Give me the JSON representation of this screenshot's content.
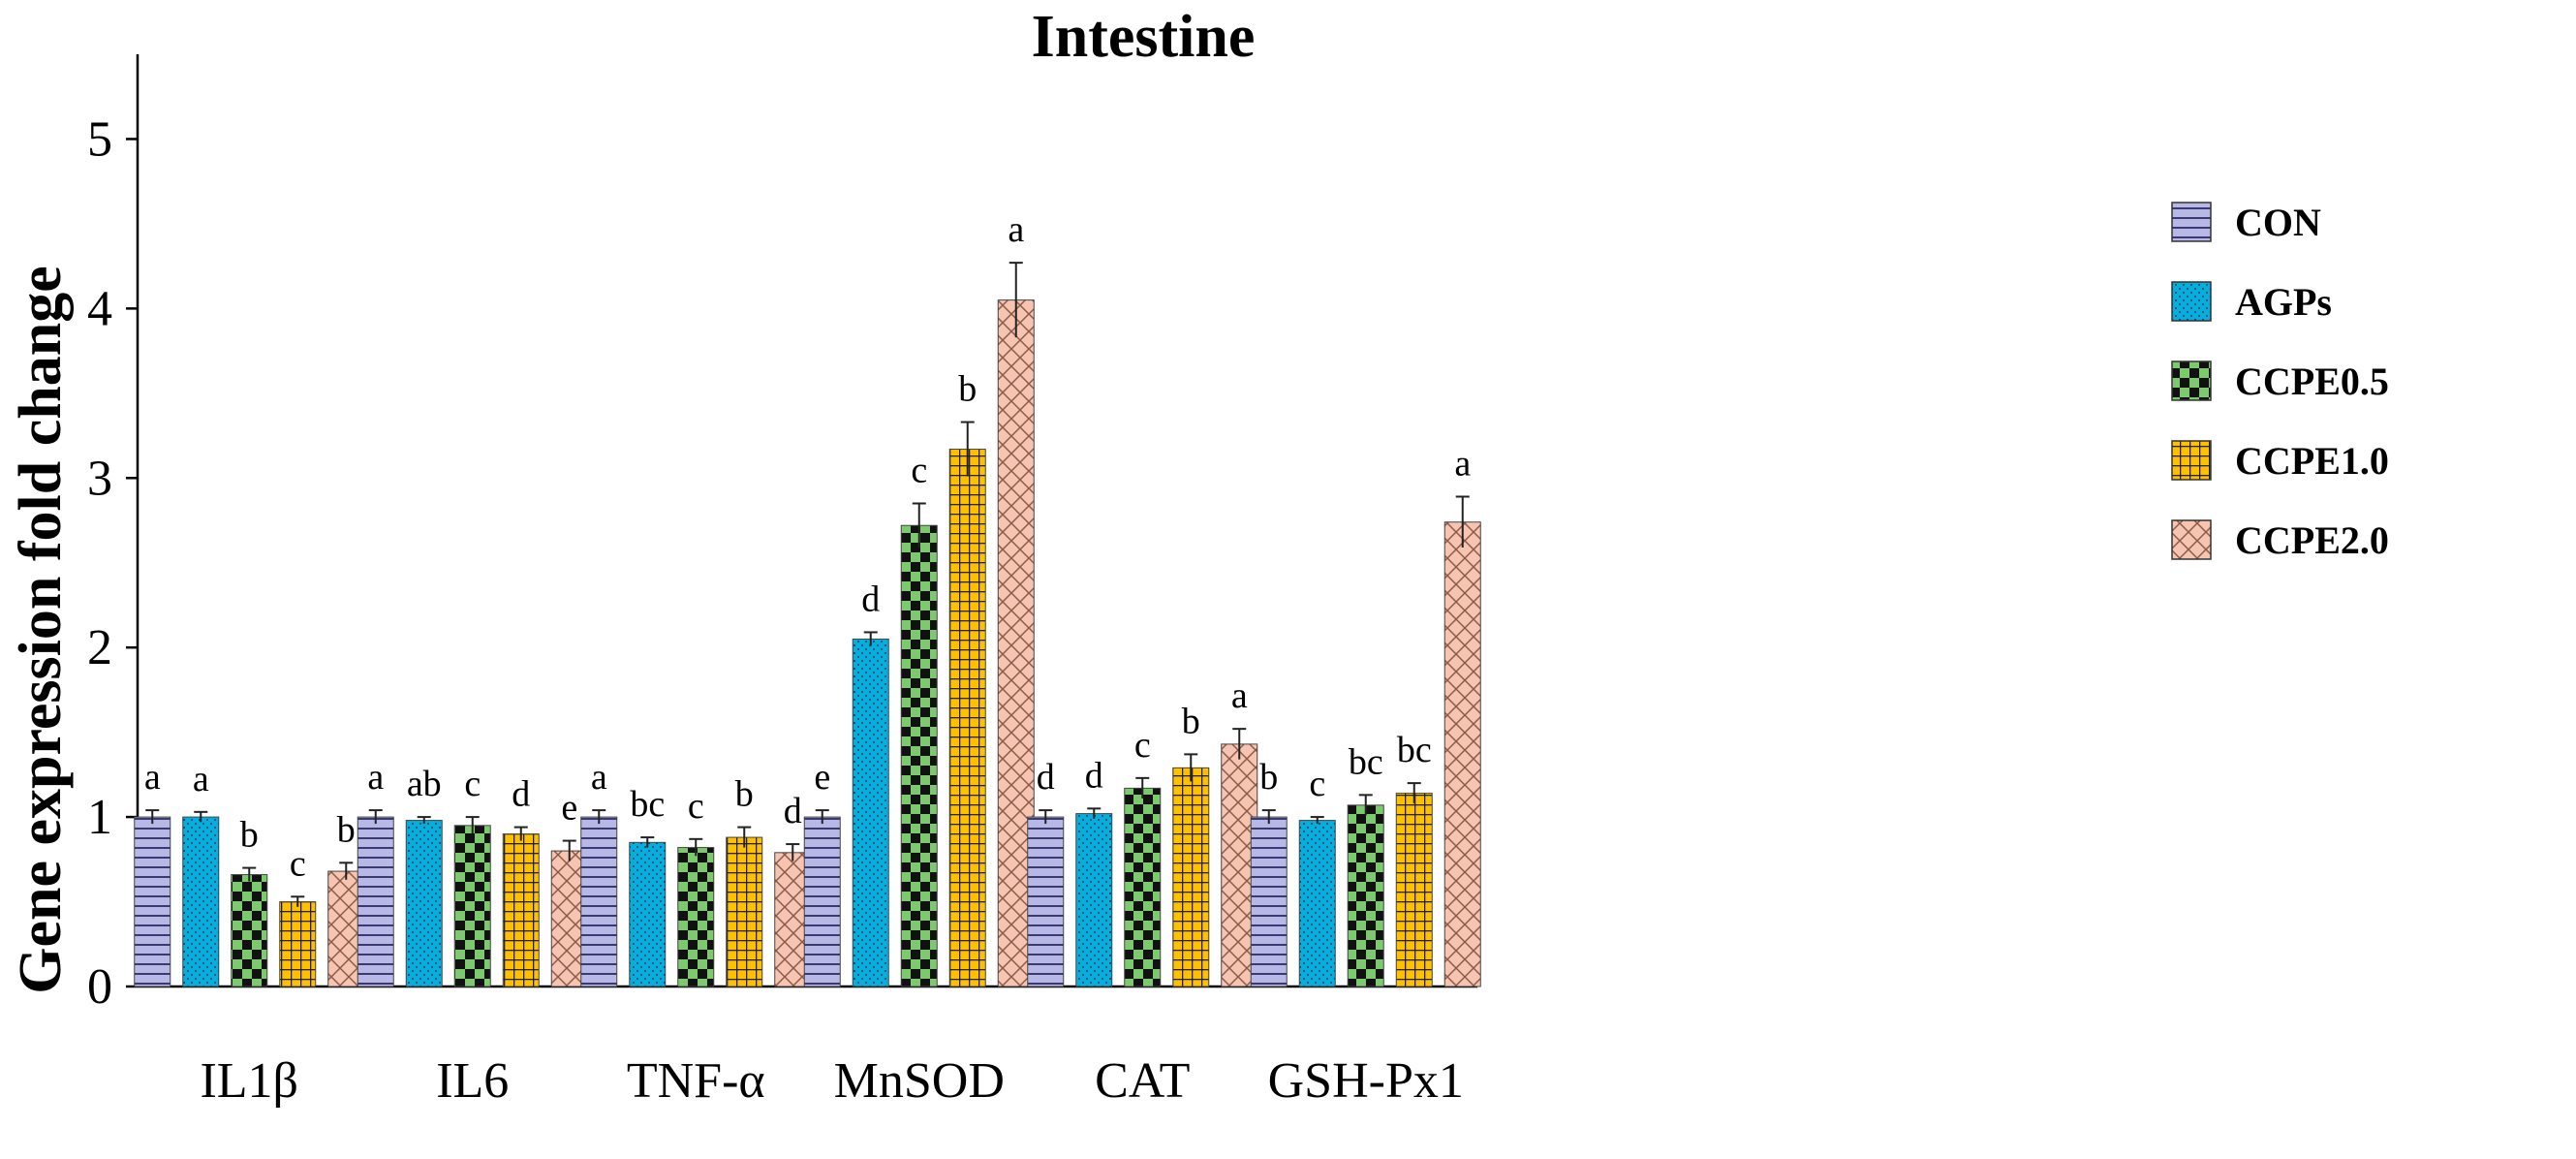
{
  "chart_data": {
    "type": "bar",
    "title": "Intestine",
    "xlabel": "",
    "ylabel": "Gene expression fold change",
    "ylim": [
      0,
      5.5
    ],
    "yticks": [
      "0",
      "1",
      "2",
      "3",
      "4",
      "5"
    ],
    "grid": false,
    "legend_position": "right",
    "categories": [
      "IL1β",
      "IL6",
      "TNF-α",
      "MnSOD",
      "CAT",
      "GSH-Px1"
    ],
    "series": [
      {
        "name": "CON",
        "color": "#b8b8e6",
        "pattern": "horizontal-lines",
        "values": [
          1.0,
          1.0,
          1.0,
          1.0,
          1.0,
          1.0
        ],
        "errors": [
          0.04,
          0.04,
          0.04,
          0.04,
          0.04,
          0.04
        ],
        "labels": [
          "a",
          "a",
          "a",
          "e",
          "d",
          "b"
        ]
      },
      {
        "name": "AGPs",
        "color": "#00b0e0",
        "pattern": "dots",
        "values": [
          1.0,
          0.98,
          0.85,
          2.05,
          1.02,
          0.98
        ],
        "errors": [
          0.03,
          0.02,
          0.03,
          0.04,
          0.03,
          0.02
        ],
        "labels": [
          "a",
          "ab",
          "bc",
          "d",
          "d",
          "c"
        ]
      },
      {
        "name": "CCPE0.5",
        "color": "#7dc96e",
        "pattern": "checker",
        "values": [
          0.66,
          0.95,
          0.82,
          2.72,
          1.17,
          1.07
        ],
        "errors": [
          0.04,
          0.05,
          0.05,
          0.13,
          0.06,
          0.06
        ],
        "labels": [
          "b",
          "c",
          "c",
          "c",
          "c",
          "bc"
        ]
      },
      {
        "name": "CCPE1.0",
        "color": "#ffc000",
        "pattern": "grid",
        "values": [
          0.5,
          0.9,
          0.88,
          3.17,
          1.29,
          1.14
        ],
        "errors": [
          0.03,
          0.04,
          0.06,
          0.16,
          0.08,
          0.06
        ],
        "labels": [
          "c",
          "d",
          "b",
          "b",
          "b",
          "bc"
        ]
      },
      {
        "name": "CCPE2.0",
        "color": "#f6c4b0",
        "pattern": "crosshatch",
        "values": [
          0.68,
          0.8,
          0.79,
          4.05,
          1.43,
          2.74
        ],
        "errors": [
          0.05,
          0.06,
          0.05,
          0.22,
          0.09,
          0.15
        ],
        "labels": [
          "b",
          "e",
          "d",
          "a",
          "a",
          "a"
        ]
      }
    ]
  }
}
